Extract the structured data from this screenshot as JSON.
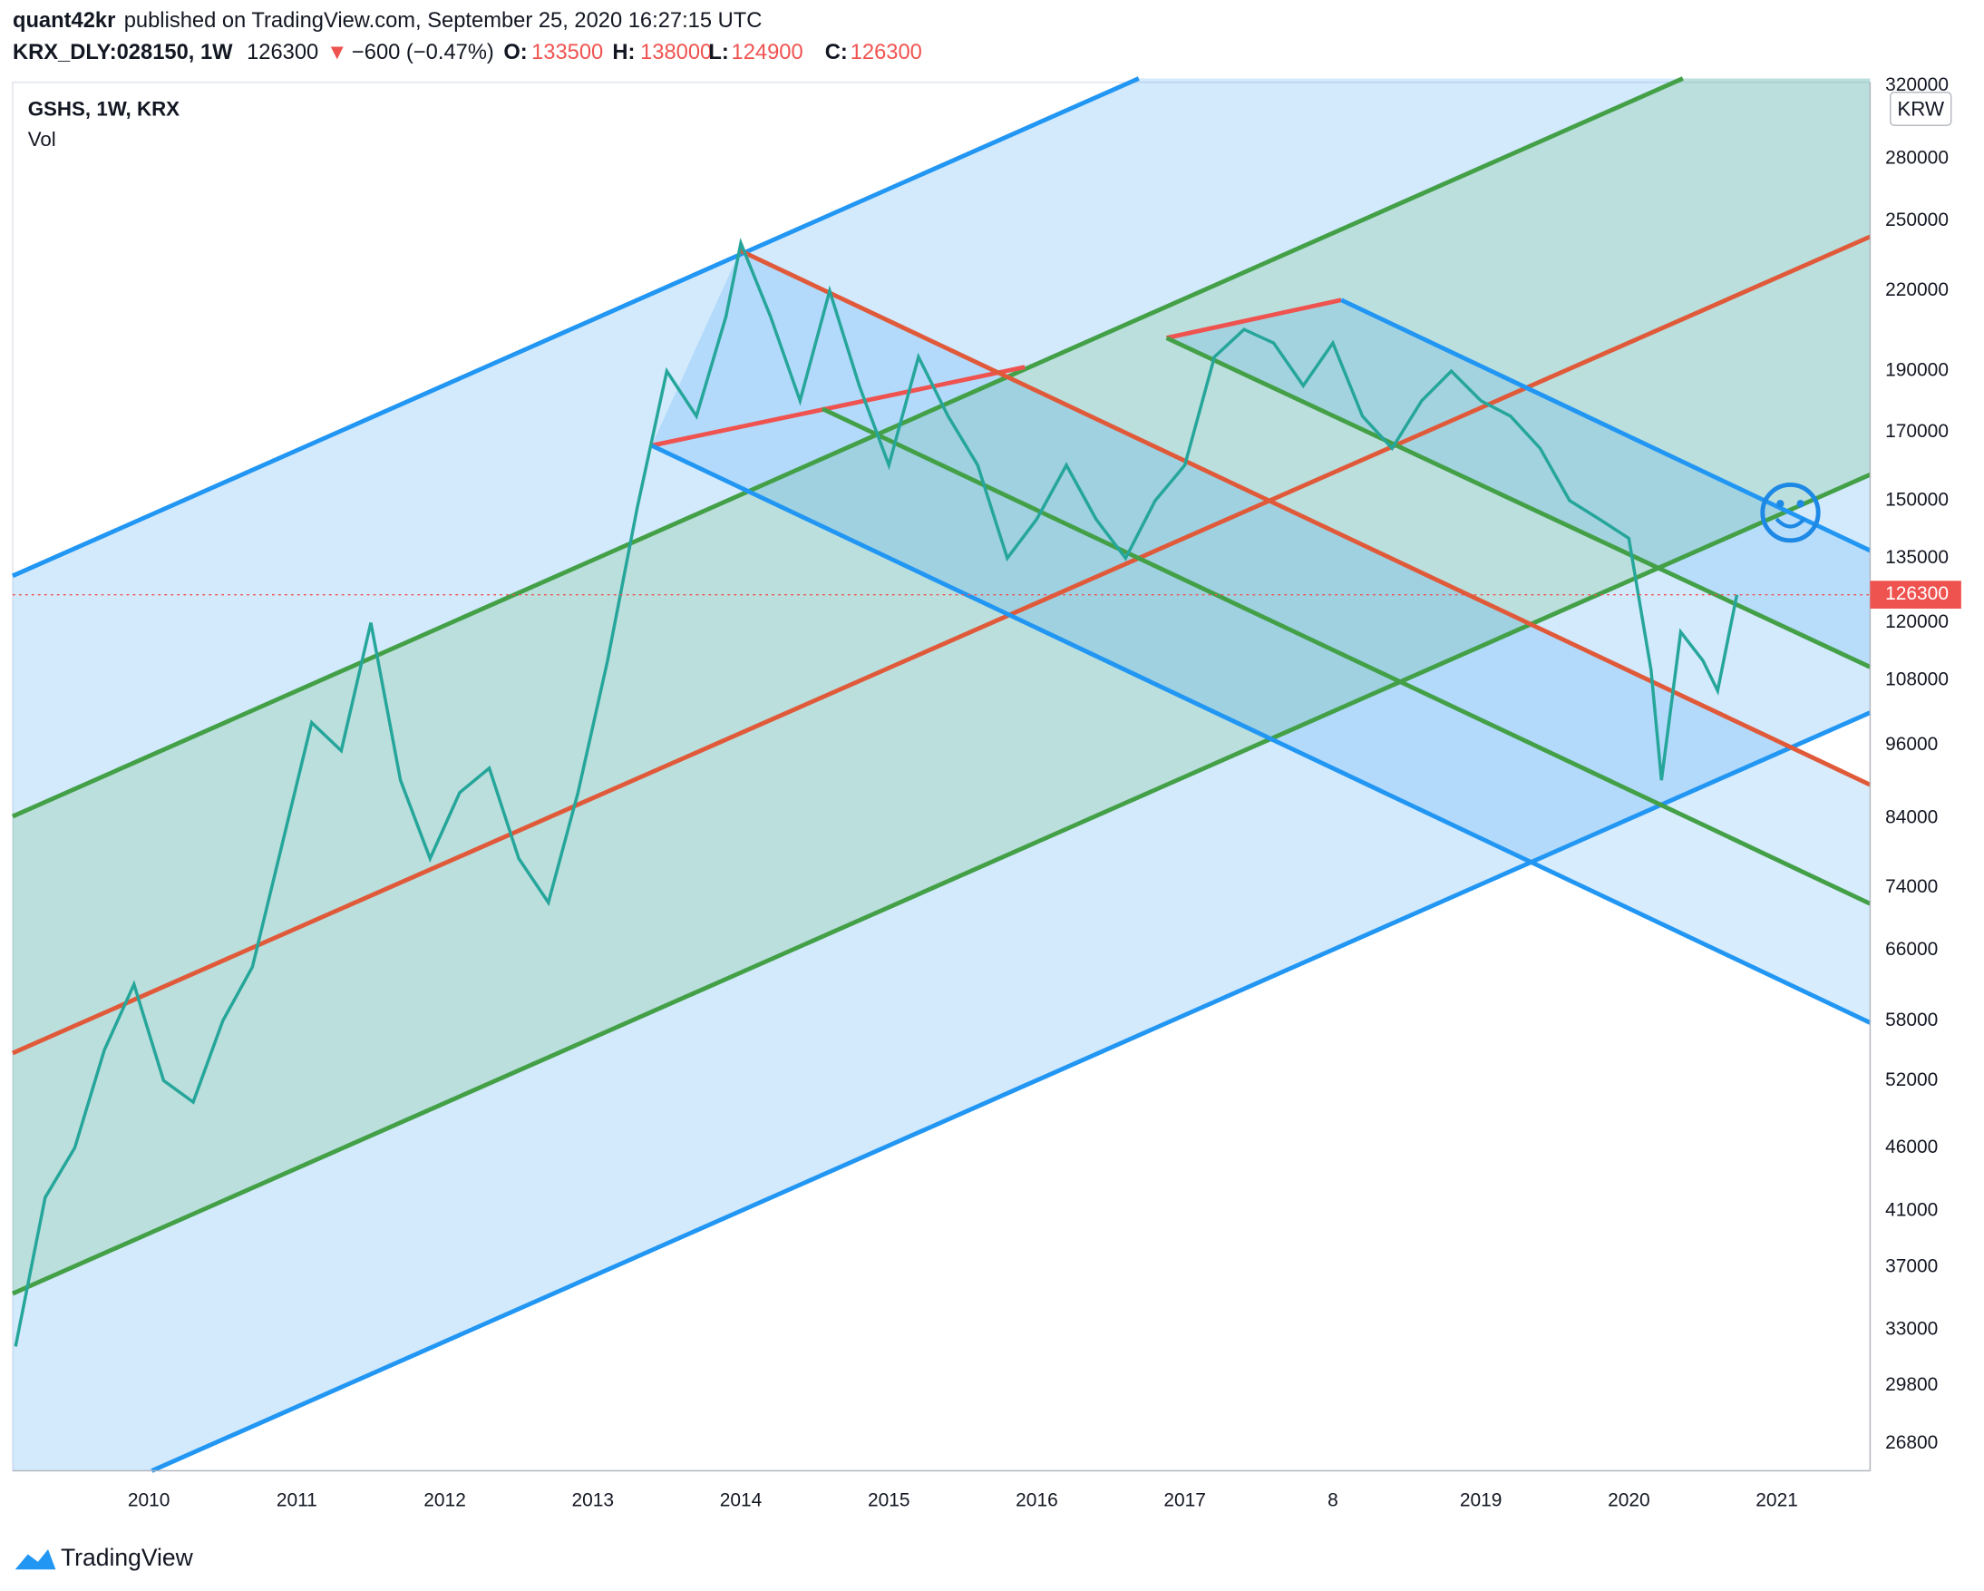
{
  "header": {
    "publisher": "quant42kr",
    "published": "published on TradingView.com, September 25, 2020 16:27:15 UTC",
    "symbol": "KRX_DLY:028150, 1W",
    "price": "126300",
    "change": "−600 (−0.47%)",
    "o_label": "O:",
    "o": "133500",
    "h_label": "H:",
    "h": "138000",
    "l_label": "L:",
    "l": "124900",
    "c_label": "C:",
    "c": "126300"
  },
  "legend": {
    "main": "GSHS, 1W, KRX",
    "vol": "Vol"
  },
  "currency": "KRW",
  "footer": "TradingView",
  "chart_data": {
    "type": "line",
    "log_scale": true,
    "grid": true,
    "last_price": 126300,
    "xlim": [
      2009.08,
      2021.63
    ],
    "xticks": [
      2010,
      2011,
      2012,
      2013,
      2014,
      2015,
      2016,
      2017,
      {
        "value": 2018,
        "label": "8"
      },
      2019,
      2020,
      2021
    ],
    "ylim": [
      25500,
      322000
    ],
    "yticks": [
      26800,
      29800,
      33000,
      37000,
      41000,
      46000,
      52000,
      58000,
      66000,
      74000,
      84000,
      96000,
      108000,
      120000,
      135000,
      150000,
      170000,
      190000,
      220000,
      250000,
      280000,
      320000
    ],
    "series": [
      {
        "name": "GSHS",
        "color": "#26a69a",
        "x": [
          2009.1,
          2009.3,
          2009.5,
          2009.7,
          2009.9,
          2010.1,
          2010.3,
          2010.5,
          2010.7,
          2010.9,
          2011.1,
          2011.3,
          2011.5,
          2011.7,
          2011.9,
          2012.1,
          2012.3,
          2012.5,
          2012.7,
          2012.9,
          2013.1,
          2013.3,
          2013.5,
          2013.7,
          2013.9,
          2014.0,
          2014.2,
          2014.4,
          2014.6,
          2014.8,
          2015.0,
          2015.2,
          2015.4,
          2015.6,
          2015.8,
          2016.0,
          2016.2,
          2016.4,
          2016.6,
          2016.8,
          2017.0,
          2017.2,
          2017.4,
          2017.6,
          2017.8,
          2018.0,
          2018.2,
          2018.4,
          2018.6,
          2018.8,
          2019.0,
          2019.2,
          2019.4,
          2019.6,
          2019.8,
          2020.0,
          2020.15,
          2020.22,
          2020.35,
          2020.5,
          2020.6,
          2020.73
        ],
        "values": [
          32000,
          42000,
          46000,
          55000,
          62000,
          52000,
          50000,
          58000,
          64000,
          80000,
          100000,
          95000,
          120000,
          90000,
          78000,
          88000,
          92000,
          78000,
          72000,
          88000,
          112000,
          148000,
          190000,
          175000,
          210000,
          240000,
          210000,
          180000,
          220000,
          185000,
          160000,
          195000,
          175000,
          160000,
          135000,
          145000,
          160000,
          145000,
          135000,
          150000,
          160000,
          195000,
          205000,
          200000,
          185000,
          200000,
          175000,
          165000,
          180000,
          190000,
          180000,
          175000,
          165000,
          150000,
          145000,
          140000,
          110000,
          90000,
          118000,
          112000,
          106000,
          126300
        ]
      }
    ]
  }
}
